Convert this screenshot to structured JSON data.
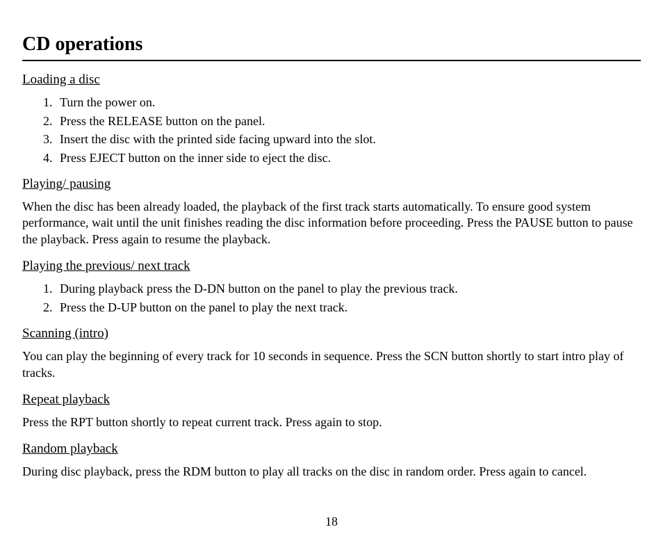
{
  "page": {
    "title": "CD operations",
    "number": "18"
  },
  "sections": {
    "loading": {
      "heading": "Loading a disc",
      "items": [
        "Turn the power on.",
        "Press the RELEASE button on the panel.",
        "Insert the disc with the printed side facing upward into the slot.",
        "Press EJECT button on the inner side to eject the disc."
      ]
    },
    "playing_pausing": {
      "heading": "Playing/ pausing",
      "body": "When the disc has been already loaded, the playback of the first track starts automatically. To ensure good system performance, wait until the unit finishes reading the disc information before proceeding. Press the PAUSE button to pause the playback. Press again to resume the playback."
    },
    "prev_next": {
      "heading": "Playing the previous/ next track",
      "items": [
        "During playback press the D-DN button on the panel to play the previous track.",
        "Press the D-UP button on the panel to play the next track."
      ]
    },
    "scanning": {
      "heading": "Scanning (intro)",
      "body": "You can play the beginning of every track for 10 seconds in sequence. Press the SCN button shortly to start intro play of tracks."
    },
    "repeat": {
      "heading": "Repeat playback",
      "body": "Press the RPT button shortly to repeat current track. Press again to stop."
    },
    "random": {
      "heading": "Random playback",
      "body": "During disc playback, press the RDM button to play all tracks on the disc in random order. Press again to cancel."
    }
  }
}
